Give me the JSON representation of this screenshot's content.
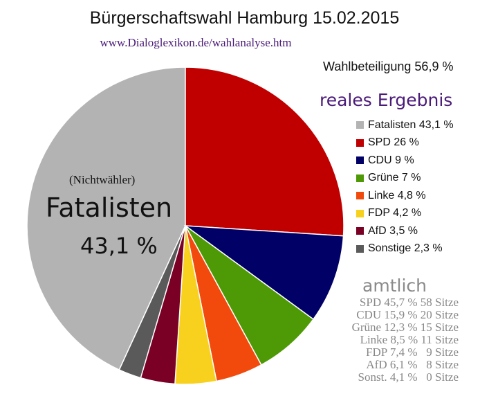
{
  "chart_data": {
    "type": "pie",
    "title": "Bürgerschaftswahl Hamburg 15.02.2015",
    "subtitle": "www.Dialoglexikon.de/wahlanalyse.htm",
    "turnout_label": "Wahlbeteiligung 56,9 %",
    "legend_title": "reales Ergebnis",
    "slices": [
      {
        "label": "Fatalisten 43,1 %",
        "value": 43.1,
        "color": "#b3b3b3"
      },
      {
        "label": "SPD 26 %",
        "value": 26,
        "color": "#c00000"
      },
      {
        "label": "CDU 9 %",
        "value": 9,
        "color": "#000066"
      },
      {
        "label": "Grüne 7 %",
        "value": 7,
        "color": "#4e9a06"
      },
      {
        "label": "Linke 4,8 %",
        "value": 4.8,
        "color": "#f24a0d"
      },
      {
        "label": "FDP 4,2 %",
        "value": 4.2,
        "color": "#f7d11e"
      },
      {
        "label": "AfD 3,5 %",
        "value": 3.5,
        "color": "#7a0026"
      },
      {
        "label": "Sonstige 2,3 %",
        "value": 2.3,
        "color": "#5a5a5a"
      }
    ],
    "annotation": {
      "note": "(Nichtwähler)",
      "name": "Fatalisten",
      "percent": "43,1 %"
    },
    "official": {
      "heading": "amtlich",
      "rows": [
        "SPD 45,7 % 58 Sitze",
        "CDU 15,9 % 20 Sitze",
        "Grüne 12,3 % 15 Sitze",
        "Linke 8,5 % 11 Sitze",
        "FDP 7,4 %   9 Sitze",
        "AfD 6,1 %   8 Sitze",
        "Sonst. 4,1 %   0 Sitze"
      ]
    }
  }
}
